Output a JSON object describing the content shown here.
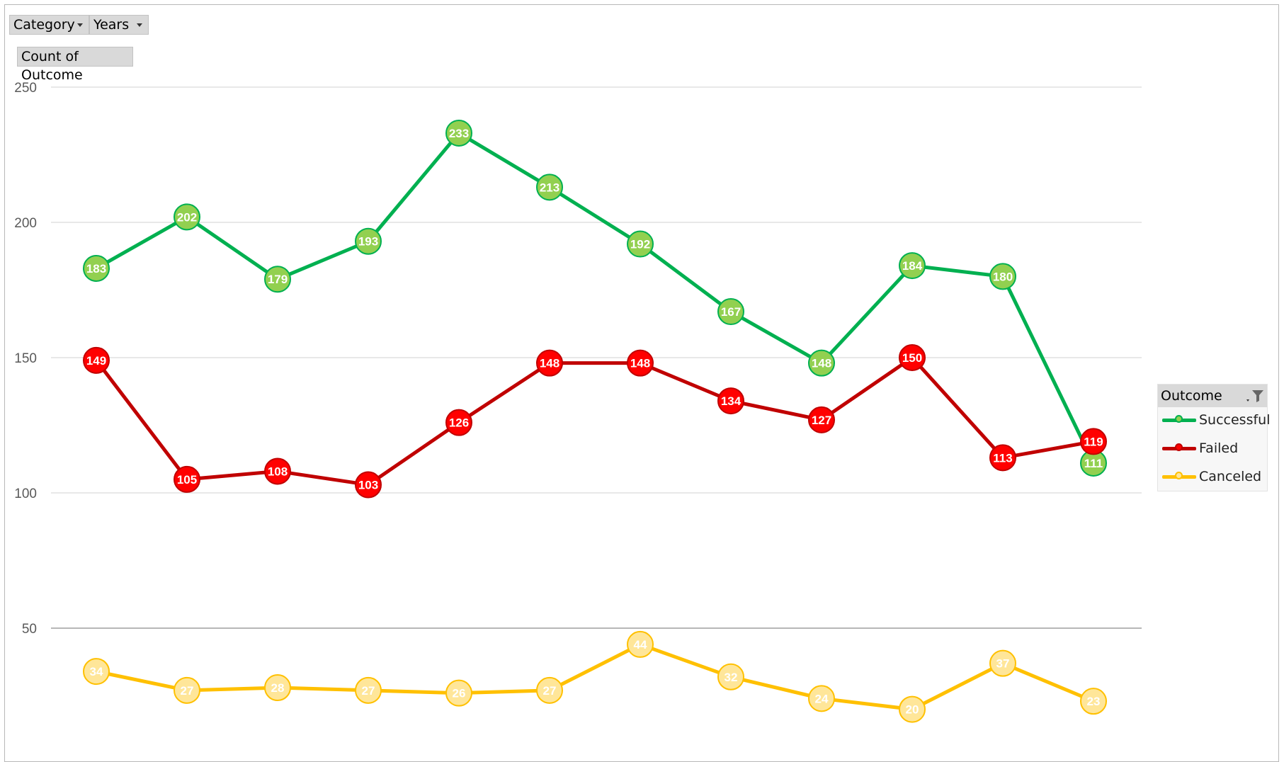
{
  "fields": {
    "category_label": "Category",
    "years_label": "Years",
    "value_label": "Count of Outcome"
  },
  "legend": {
    "title": "Outcome",
    "items": [
      "Successful",
      "Failed",
      "Canceled"
    ]
  },
  "colors": {
    "successful_line": "#00b050",
    "successful_fill": "#92d050",
    "failed_line": "#c00000",
    "failed_fill": "#ff0000",
    "canceled_line": "#ffc000",
    "canceled_fill": "#ffe699",
    "grid": "#d9d9d9",
    "axis": "#404040"
  },
  "chart_data": {
    "type": "line",
    "ylim": [
      0,
      250
    ],
    "yticks": [
      0,
      50,
      100,
      150,
      200,
      250
    ],
    "x": [
      1,
      2,
      3,
      4,
      5,
      6,
      7,
      8,
      9,
      10,
      11,
      12
    ],
    "series": [
      {
        "name": "Successful",
        "values": [
          183,
          202,
          179,
          193,
          233,
          213,
          192,
          167,
          148,
          184,
          180,
          111
        ]
      },
      {
        "name": "Failed",
        "values": [
          149,
          105,
          108,
          103,
          126,
          148,
          148,
          134,
          127,
          150,
          113,
          119
        ]
      },
      {
        "name": "Canceled",
        "values": [
          34,
          27,
          28,
          27,
          26,
          27,
          44,
          32,
          24,
          20,
          37,
          23
        ]
      }
    ],
    "legend_position": "right",
    "grid": true
  }
}
